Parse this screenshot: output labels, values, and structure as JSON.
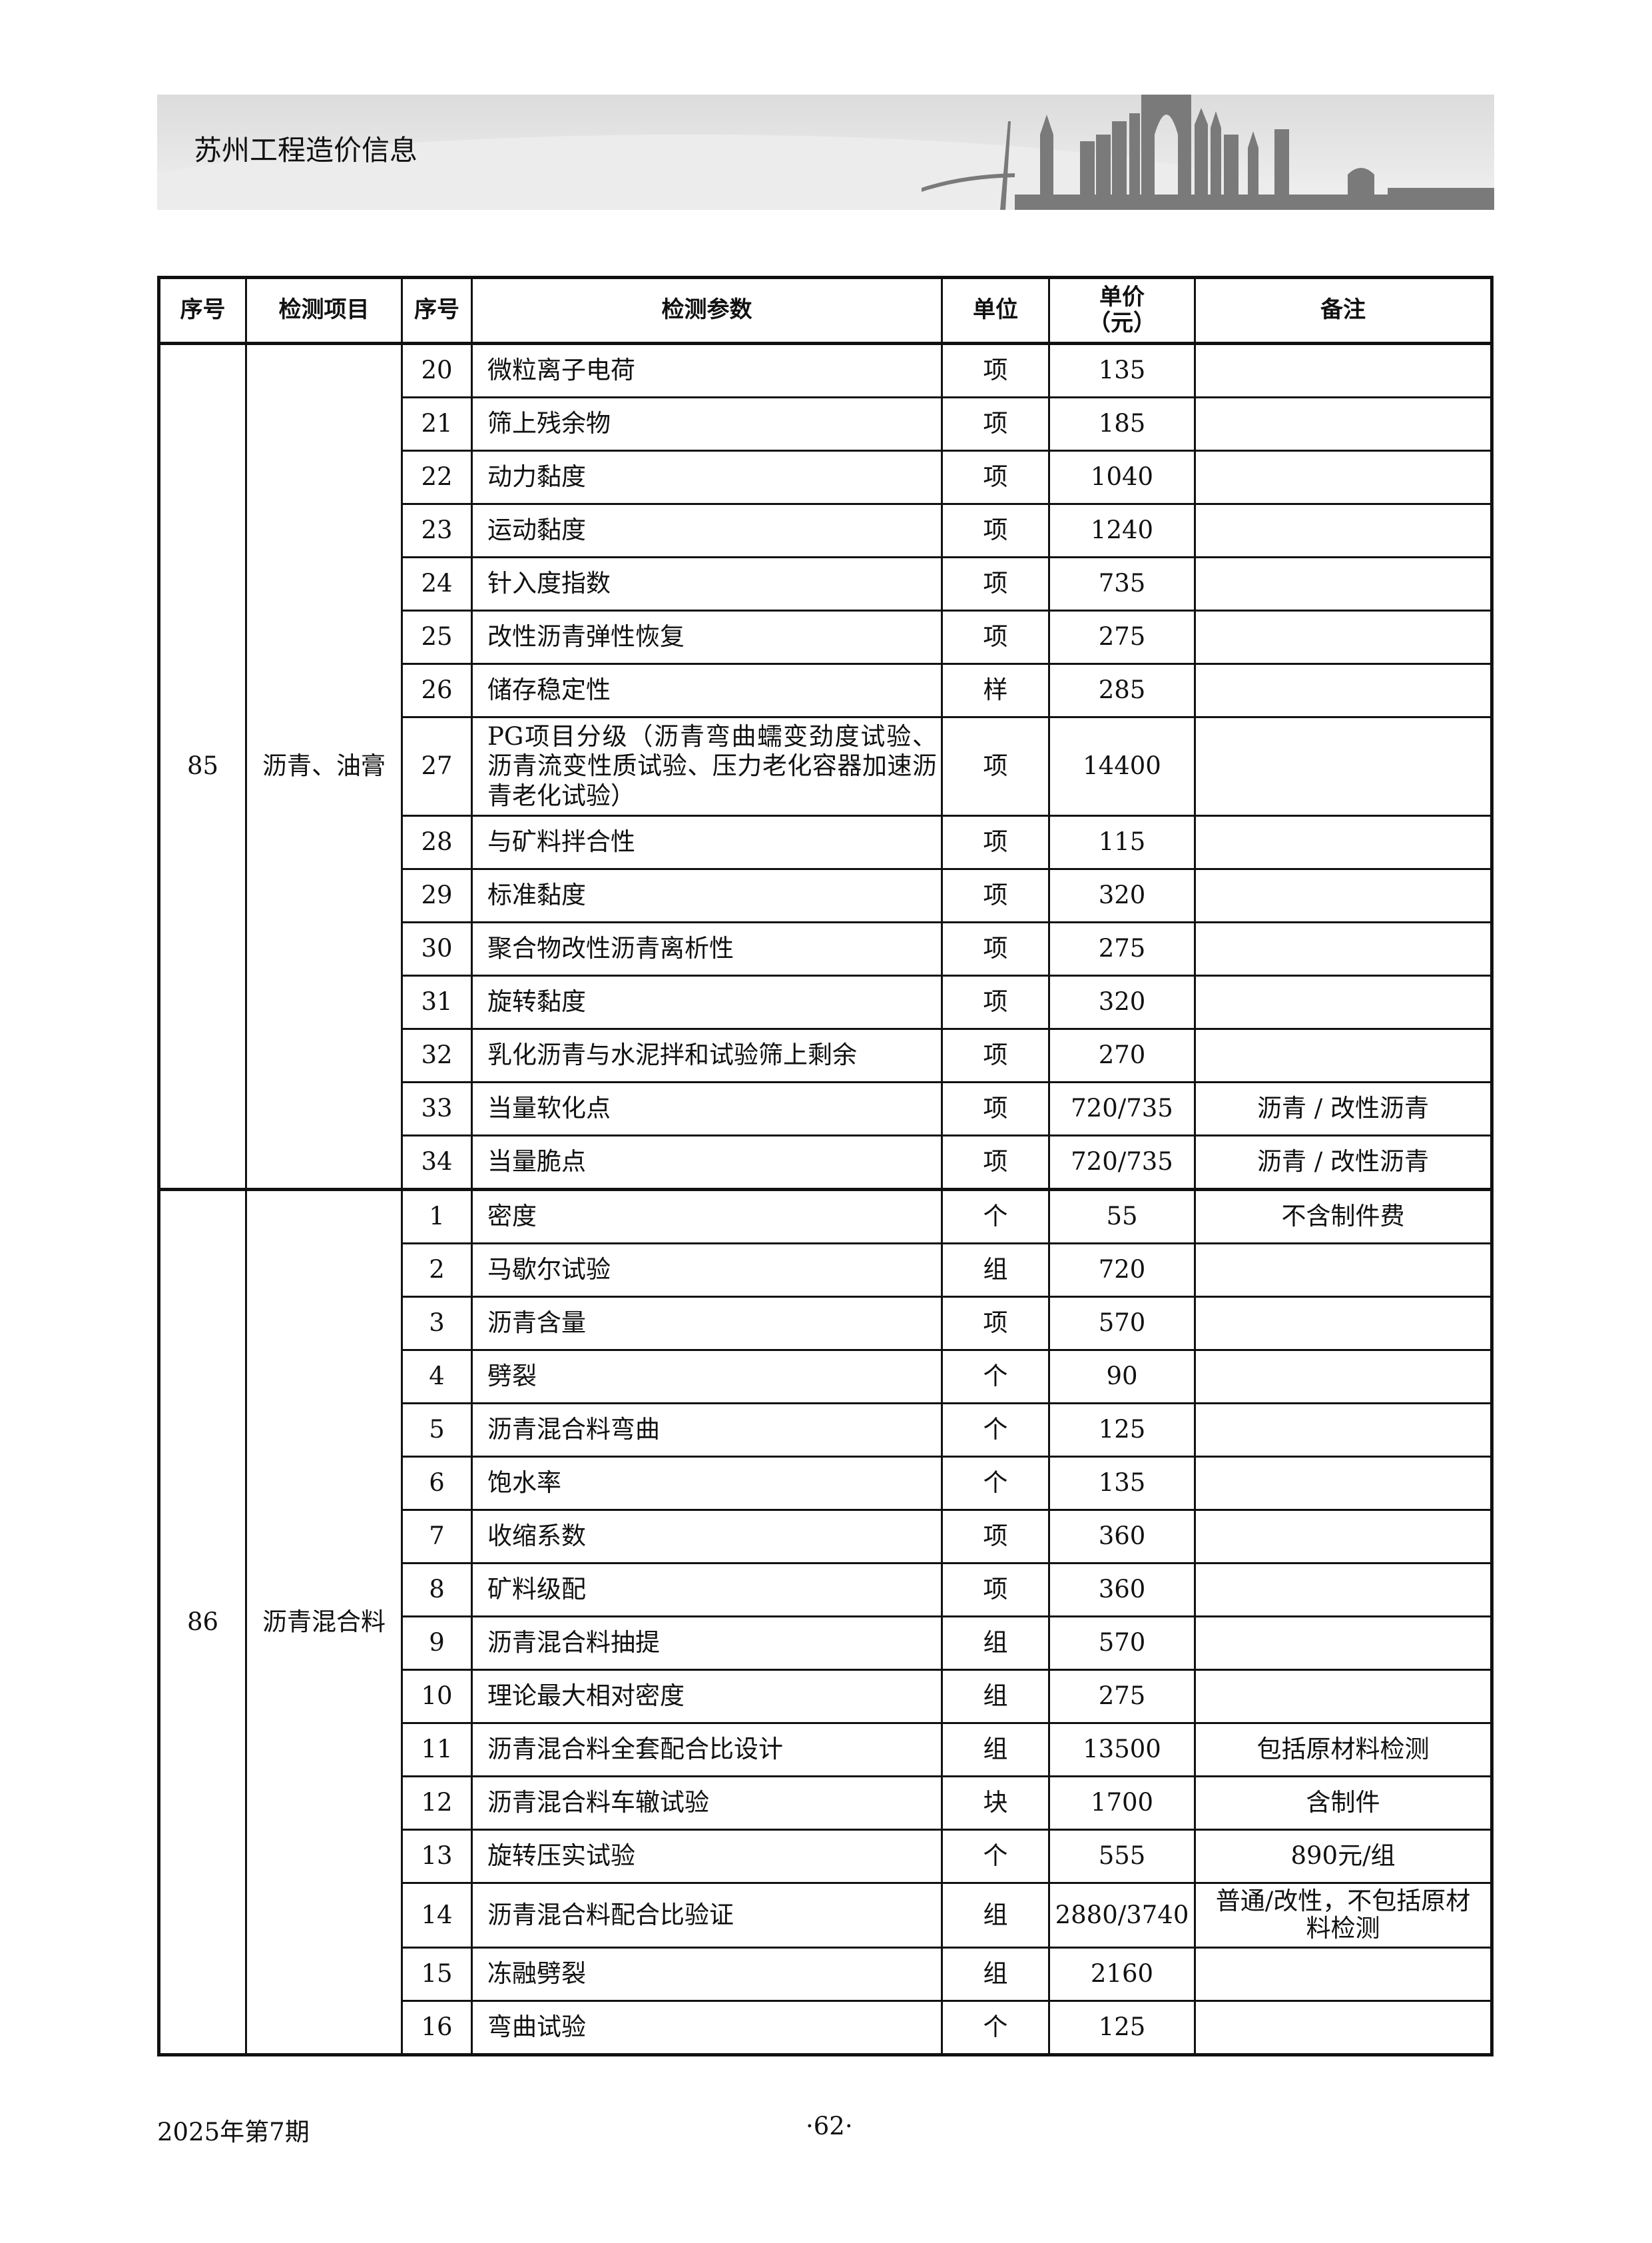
{
  "header": {
    "title": "苏州工程造价信息"
  },
  "table": {
    "columns": [
      "序号",
      "检测项目",
      "序号",
      "检测参数",
      "单位",
      "单价\n（元）",
      "备注"
    ],
    "column_unit_price_line1": "单价",
    "column_unit_price_line2": "（元）",
    "groups": [
      {
        "no": "85",
        "item": "沥青、油膏",
        "rows": [
          [
            "20",
            "微粒离子电荷",
            "项",
            "135",
            ""
          ],
          [
            "21",
            "筛上残余物",
            "项",
            "185",
            ""
          ],
          [
            "22",
            "动力黏度",
            "项",
            "1040",
            ""
          ],
          [
            "23",
            "运动黏度",
            "项",
            "1240",
            ""
          ],
          [
            "24",
            "针入度指数",
            "项",
            "735",
            ""
          ],
          [
            "25",
            "改性沥青弹性恢复",
            "项",
            "275",
            ""
          ],
          [
            "26",
            "储存稳定性",
            "样",
            "285",
            ""
          ],
          [
            "27",
            "PG项目分级（沥青弯曲蠕变劲度试验、沥青流变性质试验、压力老化容器加速沥青老化试验）",
            "项",
            "14400",
            ""
          ],
          [
            "28",
            "与矿料拌合性",
            "项",
            "115",
            ""
          ],
          [
            "29",
            "标准黏度",
            "项",
            "320",
            ""
          ],
          [
            "30",
            "聚合物改性沥青离析性",
            "项",
            "275",
            ""
          ],
          [
            "31",
            "旋转黏度",
            "项",
            "320",
            ""
          ],
          [
            "32",
            "乳化沥青与水泥拌和试验筛上剩余",
            "项",
            "270",
            ""
          ],
          [
            "33",
            "当量软化点",
            "项",
            "720/735",
            "沥青 / 改性沥青"
          ],
          [
            "34",
            "当量脆点",
            "项",
            "720/735",
            "沥青 / 改性沥青"
          ]
        ]
      },
      {
        "no": "86",
        "item": "沥青混合料",
        "rows": [
          [
            "1",
            "密度",
            "个",
            "55",
            "不含制件费"
          ],
          [
            "2",
            "马歇尔试验",
            "组",
            "720",
            ""
          ],
          [
            "3",
            "沥青含量",
            "项",
            "570",
            ""
          ],
          [
            "4",
            "劈裂",
            "个",
            "90",
            ""
          ],
          [
            "5",
            "沥青混合料弯曲",
            "个",
            "125",
            ""
          ],
          [
            "6",
            "饱水率",
            "个",
            "135",
            ""
          ],
          [
            "7",
            "收缩系数",
            "项",
            "360",
            ""
          ],
          [
            "8",
            "矿料级配",
            "项",
            "360",
            ""
          ],
          [
            "9",
            "沥青混合料抽提",
            "组",
            "570",
            ""
          ],
          [
            "10",
            "理论最大相对密度",
            "组",
            "275",
            ""
          ],
          [
            "11",
            "沥青混合料全套配合比设计",
            "组",
            "13500",
            "包括原材料检测"
          ],
          [
            "12",
            "沥青混合料车辙试验",
            "块",
            "1700",
            "含制件"
          ],
          [
            "13",
            "旋转压实试验",
            "个",
            "555",
            "890元/组"
          ],
          [
            "14",
            "沥青混合料配合比验证",
            "组",
            "2880/3740",
            "普通/改性，不包括原材料检测"
          ],
          [
            "15",
            "冻融劈裂",
            "组",
            "2160",
            ""
          ],
          [
            "16",
            "弯曲试验",
            "个",
            "125",
            ""
          ]
        ]
      }
    ]
  },
  "footer": {
    "issue": "2025年第7期",
    "page": "·62·"
  },
  "colors": {
    "banner_bg": "#e0e0e0",
    "skyline": "#7a7a7a",
    "border": "#111111"
  }
}
